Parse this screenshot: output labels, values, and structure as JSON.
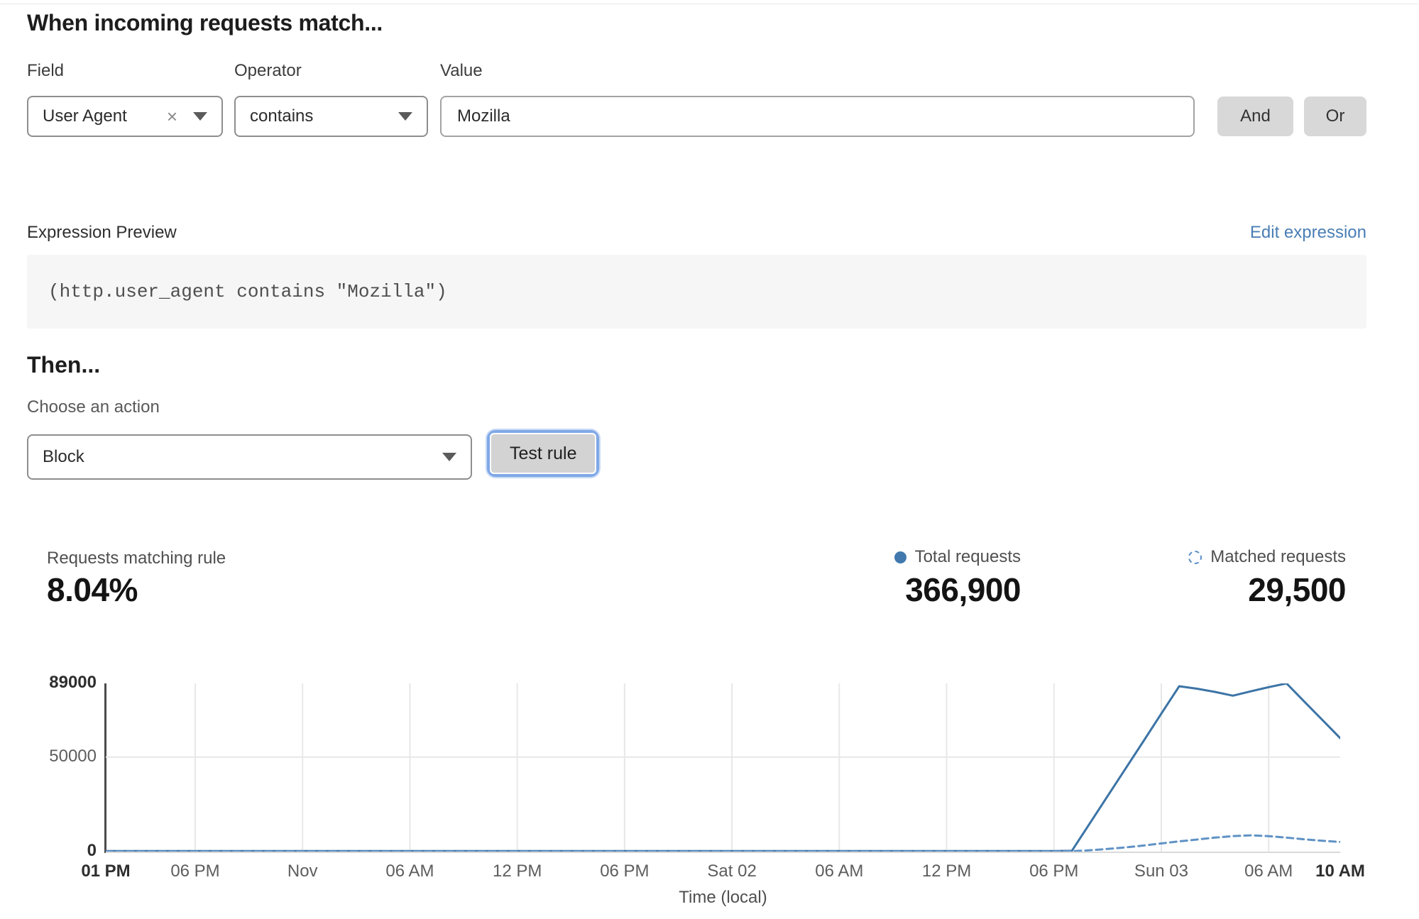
{
  "page": {
    "title": "When incoming requests match...",
    "then_title": "Then...",
    "choose_action_label": "Choose an action"
  },
  "rule_builder": {
    "field": {
      "label": "Field",
      "value": "User Agent",
      "clear_icon": "×"
    },
    "operator": {
      "label": "Operator",
      "value": "contains"
    },
    "value": {
      "label": "Value",
      "value": "Mozilla"
    },
    "and_button": "And",
    "or_button": "Or"
  },
  "expression": {
    "label": "Expression Preview",
    "edit_link": "Edit expression",
    "code": "(http.user_agent contains \"Mozilla\")"
  },
  "action": {
    "selected": "Block",
    "test_button": "Test rule"
  },
  "stats": {
    "matching": {
      "label": "Requests matching rule",
      "value": "8.04%"
    },
    "total": {
      "label": "Total requests",
      "value": "366,900"
    },
    "matched": {
      "label": "Matched requests",
      "value": "29,500"
    }
  },
  "colors": {
    "total_line": "#3c74a6",
    "matched_line": "#5f92c5",
    "link_blue": "#4a7eb5",
    "grid": "#e8e8e8"
  },
  "chart_data": {
    "type": "line",
    "title": "",
    "xlabel": "Time (local)",
    "ylabel": "",
    "ylim": [
      0,
      89000
    ],
    "x_range_hours": [
      0,
      69
    ],
    "grid": true,
    "legend_position": "top-right",
    "y_ticks": [
      {
        "value": 89000,
        "label": "89000",
        "bold": true,
        "grid": false
      },
      {
        "value": 50000,
        "label": "50000",
        "bold": false,
        "grid": true
      },
      {
        "value": 0,
        "label": "0",
        "bold": true,
        "grid": false
      }
    ],
    "x_ticks": [
      {
        "hour": 0,
        "label": "01 PM",
        "bold": true,
        "grid": false
      },
      {
        "hour": 5,
        "label": "06 PM",
        "bold": false,
        "grid": true
      },
      {
        "hour": 11,
        "label": "Nov",
        "bold": false,
        "grid": true
      },
      {
        "hour": 17,
        "label": "06 AM",
        "bold": false,
        "grid": true
      },
      {
        "hour": 23,
        "label": "12 PM",
        "bold": false,
        "grid": true
      },
      {
        "hour": 29,
        "label": "06 PM",
        "bold": false,
        "grid": true
      },
      {
        "hour": 35,
        "label": "Sat 02",
        "bold": false,
        "grid": true
      },
      {
        "hour": 41,
        "label": "06 AM",
        "bold": false,
        "grid": true
      },
      {
        "hour": 47,
        "label": "12 PM",
        "bold": false,
        "grid": true
      },
      {
        "hour": 53,
        "label": "06 PM",
        "bold": false,
        "grid": true
      },
      {
        "hour": 59,
        "label": "Sun 03",
        "bold": false,
        "grid": true
      },
      {
        "hour": 65,
        "label": "06 AM",
        "bold": false,
        "grid": true
      },
      {
        "hour": 69,
        "label": "10 AM",
        "bold": true,
        "grid": false
      }
    ],
    "series": [
      {
        "name": "Total requests",
        "style": "solid",
        "color": "#3c74a6",
        "points": [
          [
            0,
            300
          ],
          [
            10,
            300
          ],
          [
            20,
            300
          ],
          [
            30,
            300
          ],
          [
            40,
            300
          ],
          [
            50,
            300
          ],
          [
            53,
            300
          ],
          [
            54,
            400
          ],
          [
            55,
            14900
          ],
          [
            56,
            29400
          ],
          [
            57,
            43900
          ],
          [
            58,
            58400
          ],
          [
            59,
            73000
          ],
          [
            60,
            87500
          ],
          [
            61,
            86200
          ],
          [
            62,
            84500
          ],
          [
            63,
            82500
          ],
          [
            64,
            84800
          ],
          [
            65,
            87000
          ],
          [
            66,
            89000
          ],
          [
            67,
            79300
          ],
          [
            68,
            69700
          ],
          [
            69,
            60000
          ]
        ]
      },
      {
        "name": "Matched requests",
        "style": "dashed",
        "color": "#5f92c5",
        "points": [
          [
            0,
            100
          ],
          [
            10,
            100
          ],
          [
            20,
            100
          ],
          [
            30,
            100
          ],
          [
            40,
            100
          ],
          [
            50,
            100
          ],
          [
            53,
            100
          ],
          [
            54,
            200
          ],
          [
            55,
            700
          ],
          [
            56,
            1400
          ],
          [
            57,
            2200
          ],
          [
            58,
            3200
          ],
          [
            59,
            4300
          ],
          [
            60,
            5400
          ],
          [
            61,
            6400
          ],
          [
            62,
            7400
          ],
          [
            63,
            8200
          ],
          [
            64,
            8600
          ],
          [
            65,
            8200
          ],
          [
            66,
            7400
          ],
          [
            67,
            6500
          ],
          [
            68,
            5700
          ],
          [
            69,
            5100
          ]
        ]
      }
    ]
  }
}
